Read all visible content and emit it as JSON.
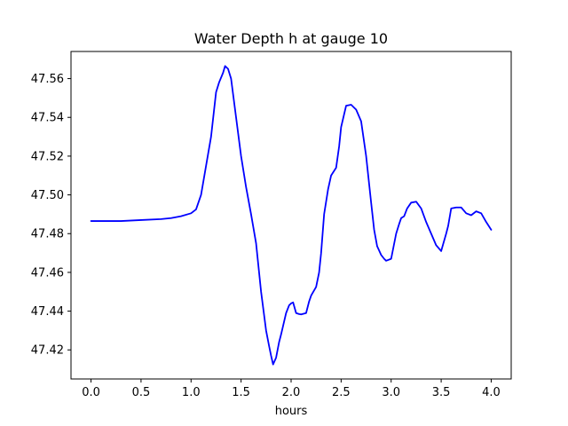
{
  "chart_data": {
    "type": "line",
    "title": "Water Depth h at gauge 10",
    "xlabel": "hours",
    "ylabel": "",
    "xlim": [
      -0.2,
      4.2
    ],
    "ylim": [
      47.405,
      47.574
    ],
    "x_ticks": [
      0.0,
      0.5,
      1.0,
      1.5,
      2.0,
      2.5,
      3.0,
      3.5,
      4.0
    ],
    "x_tick_labels": [
      "0.0",
      "0.5",
      "1.0",
      "1.5",
      "2.0",
      "2.5",
      "3.0",
      "3.5",
      "4.0"
    ],
    "y_ticks": [
      47.42,
      47.44,
      47.46,
      47.48,
      47.5,
      47.52,
      47.54,
      47.56
    ],
    "y_tick_labels": [
      "47.42",
      "47.44",
      "47.46",
      "47.48",
      "47.50",
      "47.52",
      "47.54",
      "47.56"
    ],
    "grid": false,
    "series": [
      {
        "color": "#0000ff",
        "x": [
          0.0,
          0.3,
          0.5,
          0.7,
          0.8,
          0.9,
          1.0,
          1.05,
          1.1,
          1.15,
          1.2,
          1.25,
          1.28,
          1.32,
          1.34,
          1.37,
          1.4,
          1.45,
          1.5,
          1.55,
          1.6,
          1.65,
          1.7,
          1.75,
          1.78,
          1.8,
          1.82,
          1.85,
          1.88,
          1.9,
          1.95,
          1.98,
          2.0,
          2.02,
          2.05,
          2.08,
          2.1,
          2.15,
          2.18,
          2.2,
          2.25,
          2.28,
          2.3,
          2.33,
          2.37,
          2.4,
          2.45,
          2.48,
          2.5,
          2.55,
          2.6,
          2.65,
          2.7,
          2.75,
          2.8,
          2.83,
          2.86,
          2.9,
          2.93,
          2.95,
          3.0,
          3.05,
          3.08,
          3.1,
          3.13,
          3.16,
          3.2,
          3.25,
          3.3,
          3.35,
          3.4,
          3.45,
          3.5,
          3.55,
          3.57,
          3.6,
          3.65,
          3.7,
          3.75,
          3.8,
          3.85,
          3.9,
          3.95,
          4.0
        ],
        "y": [
          47.4865,
          47.4865,
          47.487,
          47.4875,
          47.488,
          47.489,
          47.4905,
          47.4925,
          47.5,
          47.515,
          47.53,
          47.553,
          47.558,
          47.563,
          47.5665,
          47.565,
          47.56,
          47.54,
          47.52,
          47.504,
          47.49,
          47.475,
          47.45,
          47.43,
          47.422,
          47.417,
          47.4125,
          47.416,
          47.424,
          47.428,
          47.439,
          47.443,
          47.444,
          47.4445,
          47.439,
          47.4385,
          47.4383,
          47.439,
          47.445,
          47.448,
          47.4525,
          47.46,
          47.47,
          47.49,
          47.503,
          47.51,
          47.514,
          47.525,
          47.535,
          47.546,
          47.5465,
          47.544,
          47.538,
          47.52,
          47.496,
          47.482,
          47.4735,
          47.469,
          47.467,
          47.466,
          47.467,
          47.48,
          47.485,
          47.488,
          47.489,
          47.493,
          47.496,
          47.4965,
          47.493,
          47.486,
          47.48,
          47.474,
          47.471,
          47.48,
          47.484,
          47.493,
          47.4935,
          47.4935,
          47.4905,
          47.4895,
          47.4915,
          47.4905,
          47.486,
          47.482
        ]
      }
    ]
  }
}
